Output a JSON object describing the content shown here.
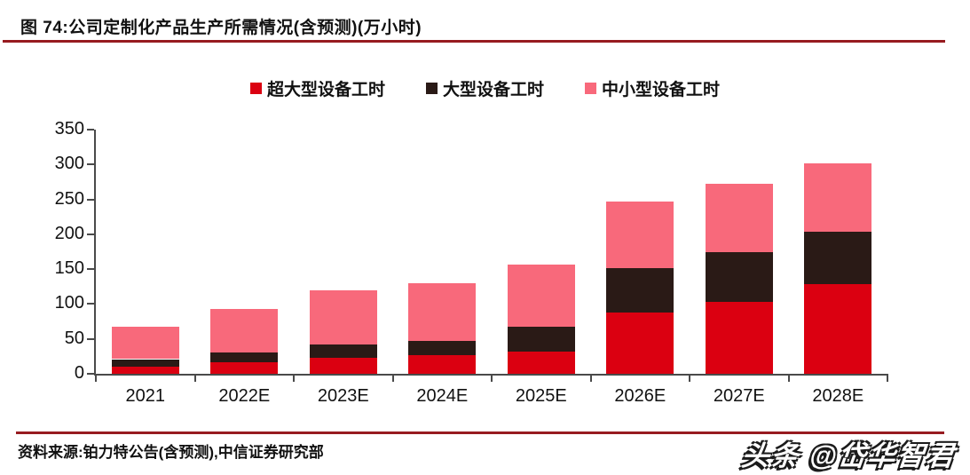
{
  "figure": {
    "title": "图 74:公司定制化产品生产所需情况(含预测)(万小时)",
    "source": "资料来源:铂力特公告(含预测),中信证券研究部",
    "watermark": "头条 @岱华智君",
    "accent_color": "#971B20"
  },
  "legend": [
    {
      "label": "超大型设备工时",
      "color": "#DB0011"
    },
    {
      "label": "大型设备工时",
      "color": "#2A1A16"
    },
    {
      "label": "中小型设备工时",
      "color": "#F8697B"
    }
  ],
  "chart_data": {
    "type": "bar",
    "stacked": true,
    "title": "公司定制化产品生产所需情况(含预测)",
    "unit": "万小时",
    "categories": [
      "2021",
      "2022E",
      "2023E",
      "2024E",
      "2025E",
      "2026E",
      "2027E",
      "2028E"
    ],
    "series": [
      {
        "name": "超大型设备工时",
        "color": "#DB0011",
        "values": [
          10,
          16,
          23,
          27,
          32,
          88,
          103,
          128
        ]
      },
      {
        "name": "大型设备工时",
        "color": "#2A1A16",
        "values": [
          11,
          15,
          19,
          20,
          35,
          63,
          71,
          76
        ]
      },
      {
        "name": "中小型设备工时",
        "color": "#F8697B",
        "values": [
          46,
          62,
          78,
          83,
          89,
          96,
          98,
          98
        ]
      }
    ],
    "totals": [
      67,
      93,
      120,
      130,
      156,
      247,
      272,
      302
    ],
    "xlabel": "",
    "ylabel": "",
    "ylim": [
      0,
      350
    ],
    "yticks": [
      0,
      50,
      100,
      150,
      200,
      250,
      300,
      350
    ],
    "grid": false,
    "legend_position": "top"
  }
}
